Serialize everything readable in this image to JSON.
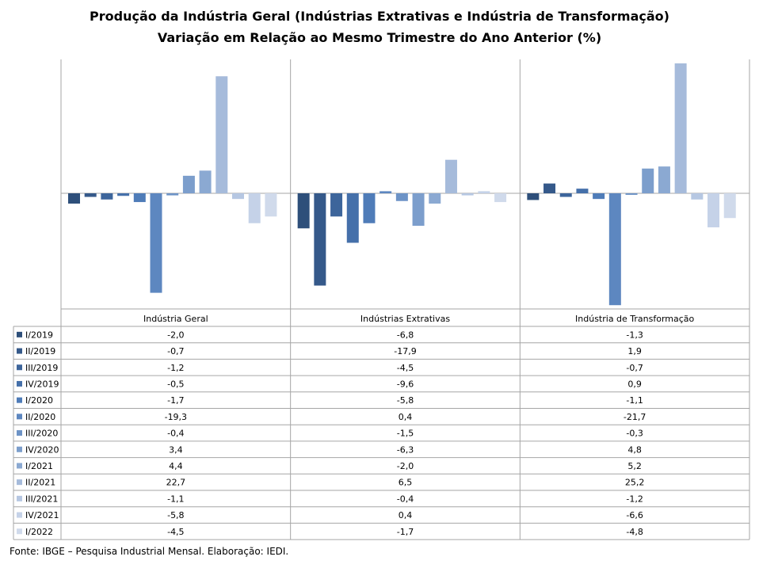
{
  "chart_data": {
    "type": "bar",
    "title": "Produção da Indústria Geral (Indústrias Extrativas e Indústria de Transformação)",
    "subtitle": "Variação  em Relação ao Mesmo Trimestre do Ano Anterior (%)",
    "groups": [
      "Indústria Geral",
      "Indústrias Extrativas",
      "Indústria de Transformação"
    ],
    "series": [
      {
        "name": "I/2019",
        "color": "#2e4f7a",
        "values": [
          -2.0,
          -6.8,
          -1.3
        ]
      },
      {
        "name": "II/2019",
        "color": "#35598a",
        "values": [
          -0.7,
          -17.9,
          1.9
        ]
      },
      {
        "name": "III/2019",
        "color": "#3d659b",
        "values": [
          -1.2,
          -4.5,
          -0.7
        ]
      },
      {
        "name": "IV/2019",
        "color": "#4570aa",
        "values": [
          -0.5,
          -9.6,
          0.9
        ]
      },
      {
        "name": "I/2020",
        "color": "#4f7cb8",
        "values": [
          -1.7,
          -5.8,
          -1.1
        ]
      },
      {
        "name": "II/2020",
        "color": "#5d87c0",
        "values": [
          -19.3,
          0.4,
          -21.7
        ]
      },
      {
        "name": "III/2020",
        "color": "#6d93c6",
        "values": [
          -0.4,
          -1.5,
          -0.3
        ]
      },
      {
        "name": "IV/2020",
        "color": "#7c9ecc",
        "values": [
          3.4,
          -6.3,
          4.8
        ]
      },
      {
        "name": "I/2021",
        "color": "#8ba9d2",
        "values": [
          4.4,
          -2.0,
          5.2
        ]
      },
      {
        "name": "II/2021",
        "color": "#a6bbdb",
        "values": [
          22.7,
          6.5,
          25.2
        ]
      },
      {
        "name": "III/2021",
        "color": "#b6c7e2",
        "values": [
          -1.1,
          -0.4,
          -1.2
        ]
      },
      {
        "name": "IV/2021",
        "color": "#c5d2e8",
        "values": [
          -5.8,
          0.4,
          -6.6
        ]
      },
      {
        "name": "I/2022",
        "color": "#d0daeb",
        "values": [
          -4.5,
          -1.7,
          -4.8
        ]
      }
    ],
    "ylim": [
      -22.5,
      25.5
    ],
    "gridlines": false,
    "legend": "data-table-left"
  },
  "footer": {
    "source": "Fonte: IBGE – Pesquisa Industrial Mensal. Elaboração: IEDI."
  }
}
